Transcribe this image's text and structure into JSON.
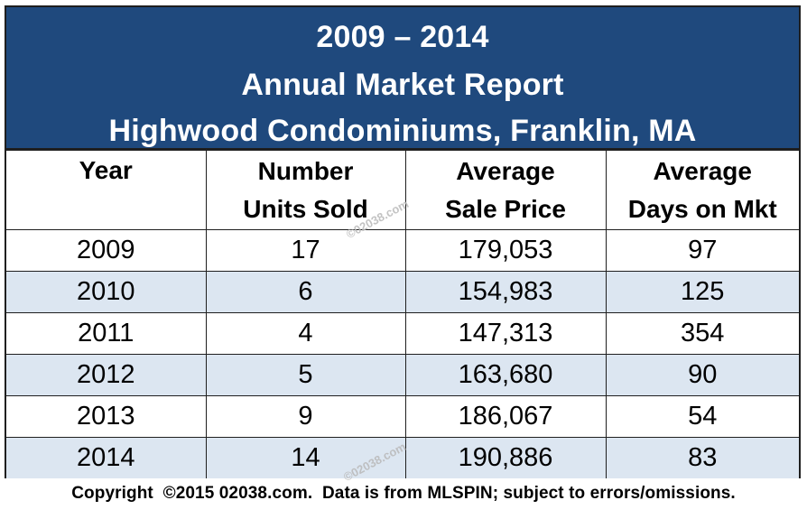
{
  "header": {
    "line1": "2009 – 2014",
    "line2": "Annual Market Report",
    "line3": "Highwood Condominiums, Franklin, MA"
  },
  "table": {
    "columns": [
      {
        "line1": "Year",
        "line2": ""
      },
      {
        "line1": "Number",
        "line2": "Units Sold"
      },
      {
        "line1": "Average",
        "line2": "Sale Price"
      },
      {
        "line1": "Average",
        "line2": "Days on Mkt"
      }
    ],
    "rows": [
      {
        "year": "2009",
        "units": "17",
        "price": "179,053",
        "days": "97"
      },
      {
        "year": "2010",
        "units": "6",
        "price": "154,983",
        "days": "125"
      },
      {
        "year": "2011",
        "units": "4",
        "price": "147,313",
        "days": "354"
      },
      {
        "year": "2012",
        "units": "5",
        "price": "163,680",
        "days": "90"
      },
      {
        "year": "2013",
        "units": "9",
        "price": "186,067",
        "days": "54"
      },
      {
        "year": "2014",
        "units": "14",
        "price": "190,886",
        "days": "83"
      }
    ]
  },
  "watermark": "©02038.com",
  "footer": "Copyright  ©2015 02038.com.  Data is from MLSPIN; subject to errors/omissions.",
  "colors": {
    "header_bg": "#1f497d",
    "band_bg": "#dce6f1"
  }
}
